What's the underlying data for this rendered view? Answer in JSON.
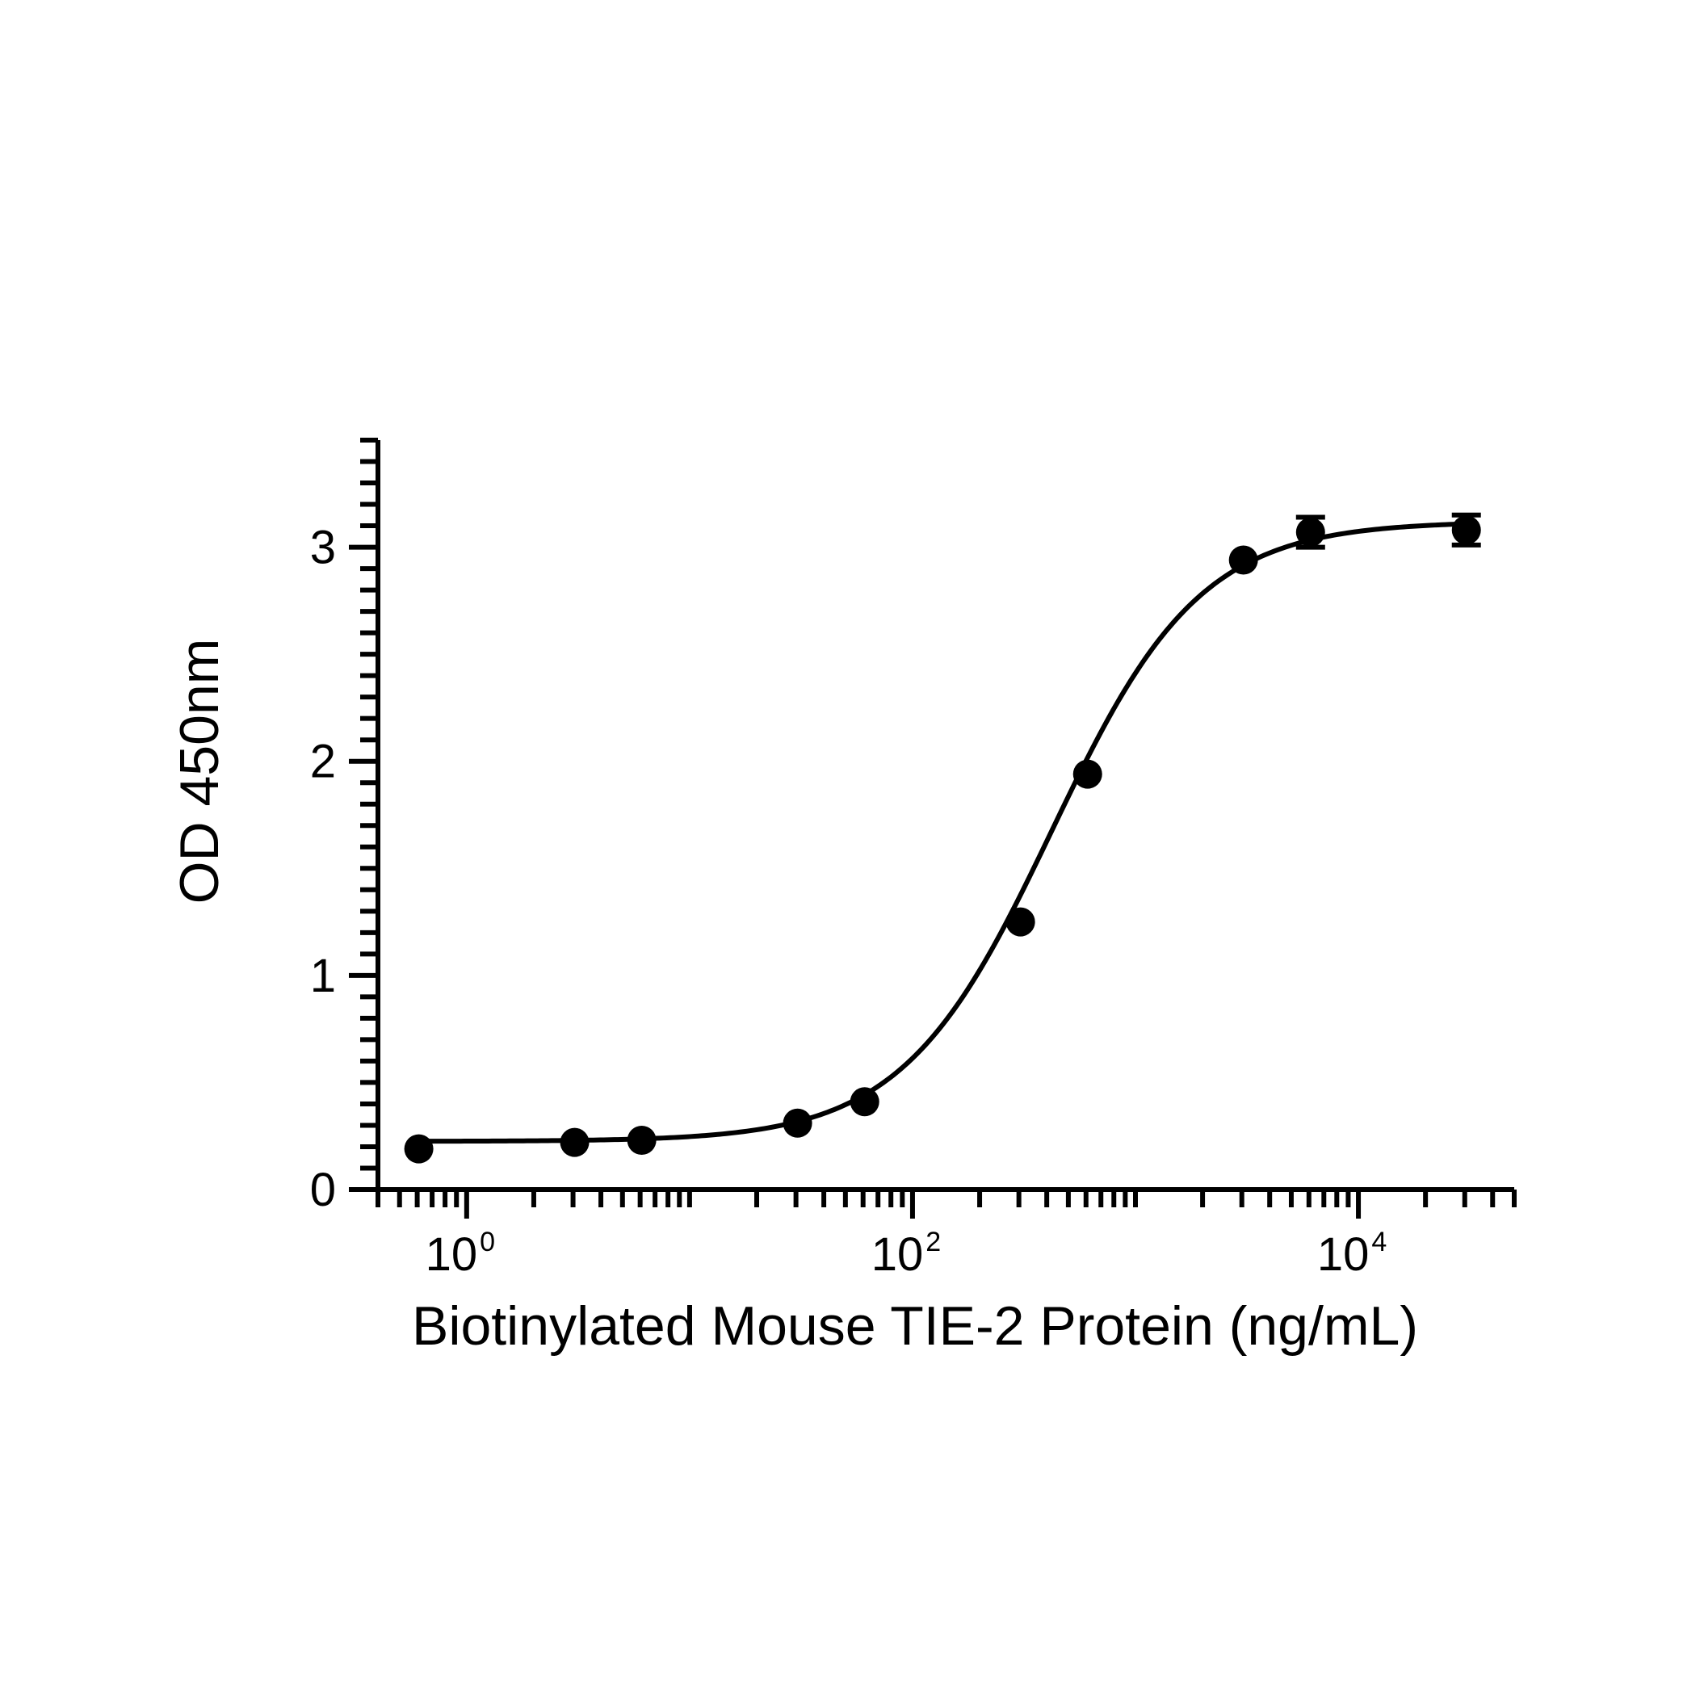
{
  "chart_data": {
    "type": "scatter",
    "xlabel": "Biotinylated Mouse TIE-2 Protein (ng/mL)",
    "ylabel": "OD 450nm",
    "xscale": "log",
    "xlim": [
      0.4,
      50000
    ],
    "ylim": [
      0,
      3.5
    ],
    "x_ticks": [
      {
        "value": 1,
        "base": "10",
        "exp": "0"
      },
      {
        "value": 100,
        "base": "10",
        "exp": "2"
      },
      {
        "value": 10000,
        "base": "10",
        "exp": "4"
      }
    ],
    "y_ticks": [
      {
        "value": 0,
        "label": "0"
      },
      {
        "value": 1,
        "label": "1"
      },
      {
        "value": 2,
        "label": "2"
      },
      {
        "value": 3,
        "label": "3"
      }
    ],
    "grid": false,
    "legend": "none",
    "colors": {
      "series": "#000000"
    },
    "series": [
      {
        "points": [
          {
            "x": 0.61,
            "y": 0.19,
            "err": 0
          },
          {
            "x": 3.05,
            "y": 0.22,
            "err": 0
          },
          {
            "x": 6.1,
            "y": 0.23,
            "err": 0
          },
          {
            "x": 30.5,
            "y": 0.31,
            "err": 0
          },
          {
            "x": 61,
            "y": 0.41,
            "err": 0
          },
          {
            "x": 305,
            "y": 1.25,
            "err": 0
          },
          {
            "x": 610,
            "y": 1.94,
            "err": 0
          },
          {
            "x": 3050,
            "y": 2.94,
            "err": 0
          },
          {
            "x": 6100,
            "y": 3.07,
            "err": 0.07
          },
          {
            "x": 30500,
            "y": 3.08,
            "err": 0.07
          }
        ],
        "fit": {
          "model": "4PL",
          "bottom": 0.225,
          "top": 3.12,
          "ec50": 420,
          "hill": 1.3
        }
      }
    ]
  }
}
